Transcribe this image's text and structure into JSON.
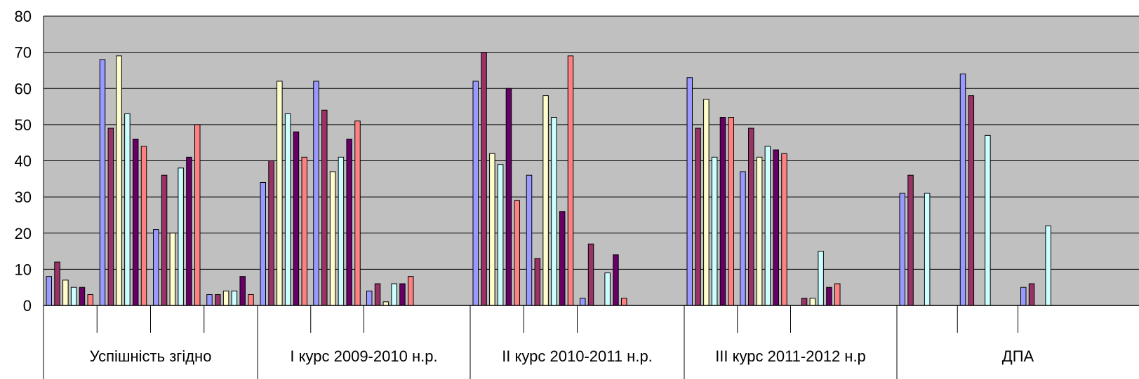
{
  "chart_data": {
    "type": "bar",
    "ylim": [
      0,
      80
    ],
    "yticks": [
      "0",
      "10",
      "20",
      "30",
      "40",
      "50",
      "60",
      "70",
      "80"
    ],
    "grid": true,
    "plot_background": "#c0c0c0",
    "series_colors": [
      "#9999ff",
      "#993366",
      "#ffffcc",
      "#ccffff",
      "#660066",
      "#ff8080"
    ],
    "groups": [
      {
        "label": "Успішність згідно",
        "subgroups": [
          [
            8,
            12,
            7,
            5,
            5,
            3
          ],
          [
            68,
            49,
            69,
            53,
            46,
            44
          ],
          [
            21,
            36,
            20,
            38,
            41,
            50
          ],
          [
            3,
            3,
            4,
            4,
            8,
            3
          ]
        ]
      },
      {
        "label": "І курс 2009-2010 н.р.",
        "subgroups": [
          [
            34,
            40,
            62,
            53,
            48,
            41
          ],
          [
            62,
            54,
            37,
            41,
            46,
            51
          ],
          [
            4,
            6,
            1,
            6,
            6,
            8
          ]
        ]
      },
      {
        "label": "ІІ курс 2010-2011 н.р.",
        "subgroups": [
          [
            62,
            70,
            42,
            39,
            60,
            29
          ],
          [
            36,
            13,
            58,
            52,
            26,
            69
          ],
          [
            2,
            17,
            0,
            9,
            14,
            2
          ]
        ]
      },
      {
        "label": "ІІІ курс 2011-2012 н.р",
        "subgroups": [
          [
            63,
            49,
            57,
            41,
            52,
            52
          ],
          [
            37,
            49,
            41,
            44,
            43,
            42
          ],
          [
            0,
            2,
            2,
            15,
            5,
            6
          ]
        ]
      },
      {
        "label": "ДПА",
        "subgroups": [
          [
            31,
            36,
            0,
            31,
            0,
            0
          ],
          [
            64,
            58,
            0,
            47,
            0,
            0
          ],
          [
            5,
            6,
            0,
            22,
            0,
            0
          ]
        ]
      }
    ]
  }
}
